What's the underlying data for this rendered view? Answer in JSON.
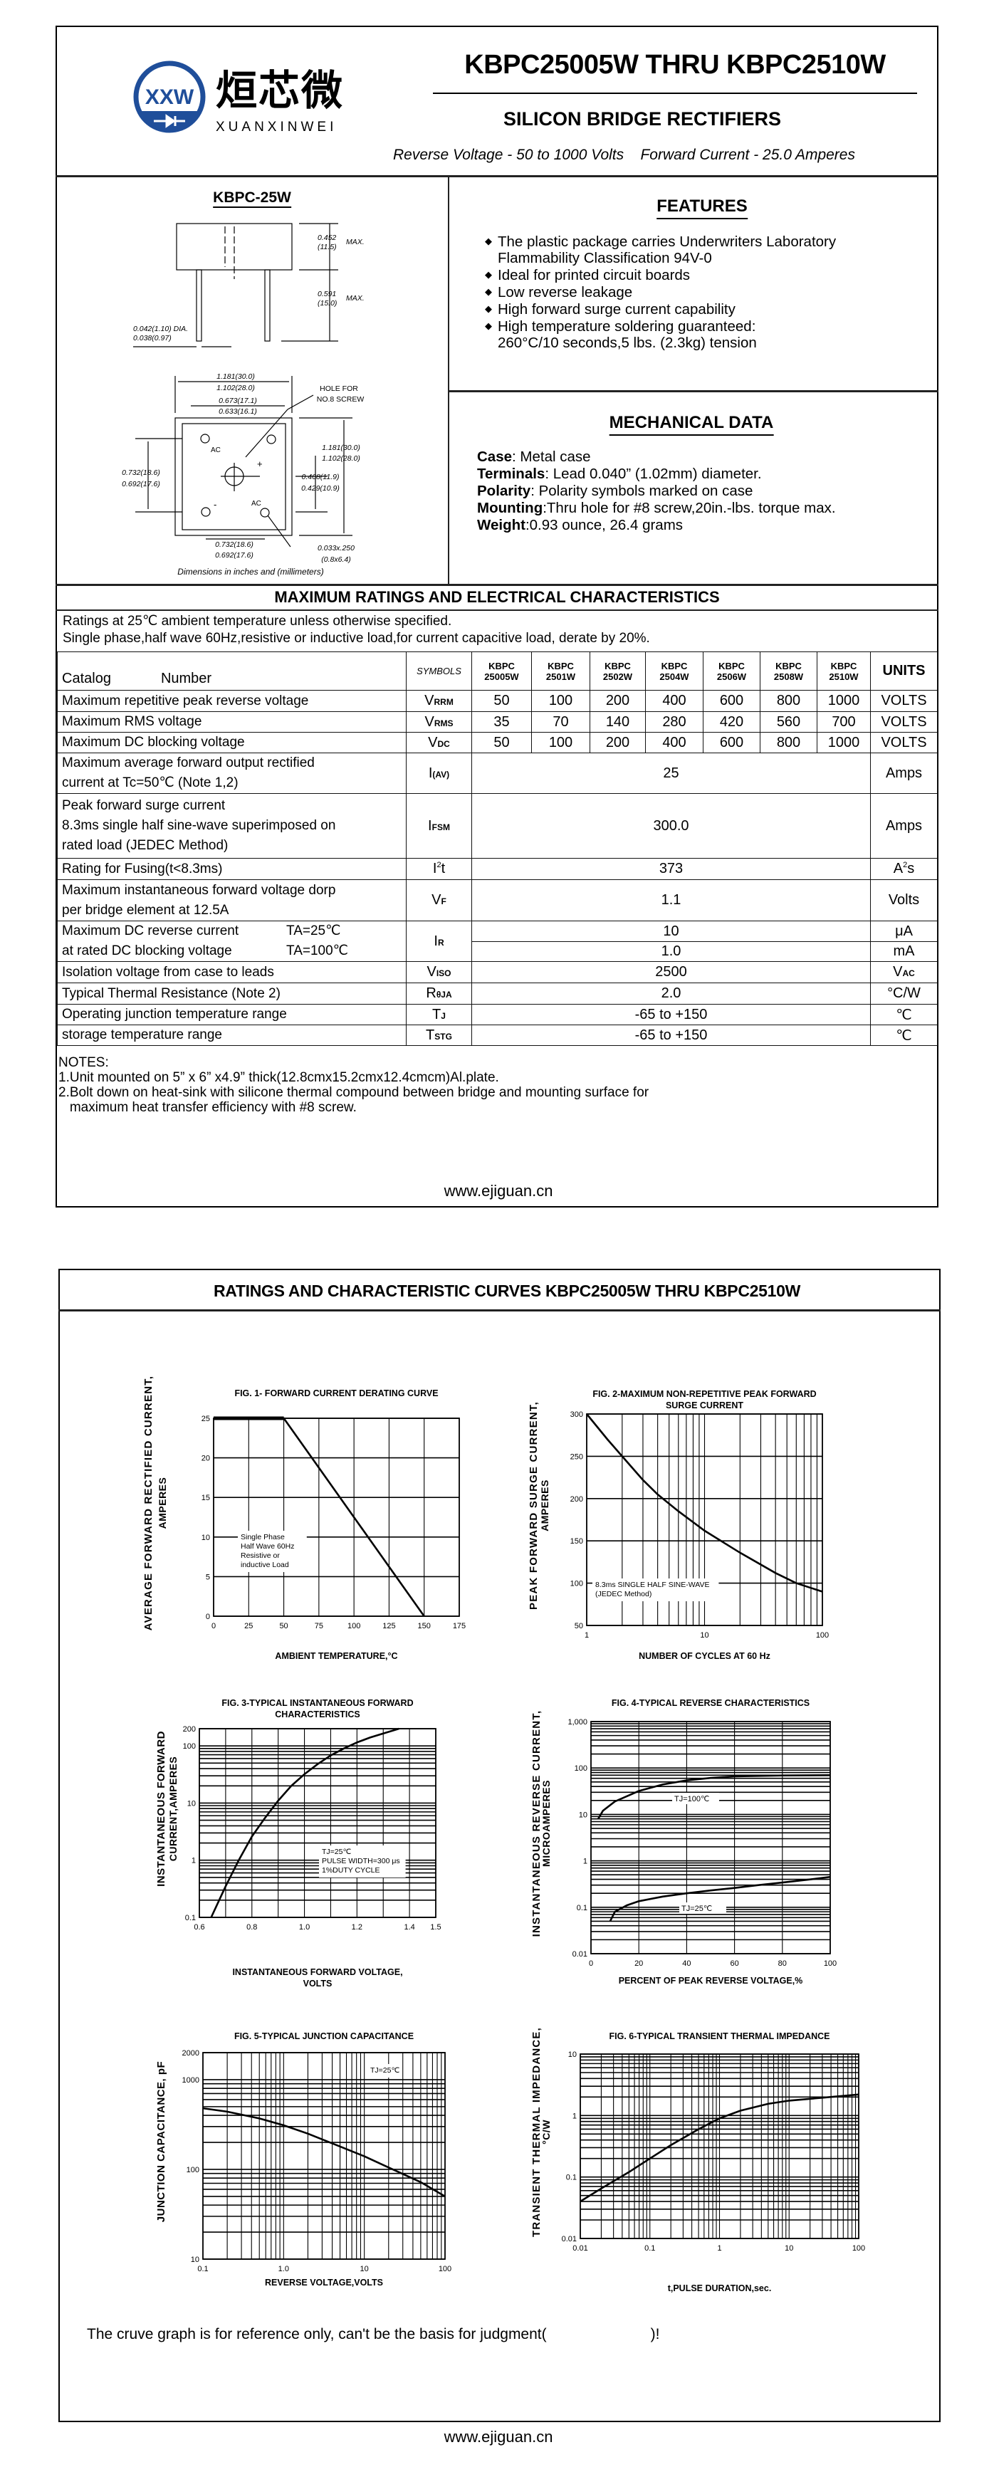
{
  "header": {
    "logo_cn": "烜芯微",
    "logo_en": "XUANXINWEI",
    "logo_mark": "XXW",
    "title": "KBPC25005W THRU KBPC2510W",
    "subtitle": "SILICON BRIDGE RECTIFIERS",
    "reverse_voltage": "Reverse Voltage - 50 to 1000 Volts",
    "forward_current": "Forward Current -  25.0 Amperes",
    "brand_color": "#1f4e9a",
    "accent_color": "#3cb54a"
  },
  "package": {
    "name": "KBPC-25W",
    "dims": {
      "body_height": [
        "0.452",
        "(11.5)",
        "MAX."
      ],
      "lead_length": [
        "0.591",
        "(15.0)",
        "MAX."
      ],
      "lead_dia": [
        "0.042(1.10) DIA.",
        "0.038(0.97)"
      ],
      "width_top": [
        "1.181(30.0)",
        "1.102(28.0)"
      ],
      "hole_spacing": [
        "0.673(17.1)",
        "0.633(16.1)"
      ],
      "hole_note": [
        "HOLE FOR",
        "NO.8 SCREW"
      ],
      "height_right": [
        "1.181(30.0)",
        "1.102(28.0)"
      ],
      "center_right": [
        "0.468(11.9)",
        "0.429(10.9)"
      ],
      "pin_left": [
        "0.732(18.6)",
        "0.692(17.6)"
      ],
      "pin_bottom": [
        "0.732(18.6)",
        "0.692(17.6)"
      ],
      "terminal": [
        "0.033x.250",
        "(0.8x6.4)"
      ],
      "pins": {
        "ac1": "AC",
        "ac2": "AC",
        "plus": "+",
        "minus": "-"
      }
    },
    "caption": "Dimensions in inches and (millimeters)"
  },
  "features": {
    "title": "FEATURES",
    "items": [
      {
        "lines": [
          "The plastic package carries Underwriters Laboratory",
          "Flammability Classification 94V-0"
        ]
      },
      {
        "lines": [
          "Ideal for printed circuit boards"
        ]
      },
      {
        "lines": [
          "Low reverse leakage"
        ]
      },
      {
        "lines": [
          "High forward surge current capability"
        ]
      },
      {
        "lines": [
          "High temperature soldering guaranteed:",
          "260°C/10 seconds,5 lbs. (2.3kg) tension"
        ]
      }
    ]
  },
  "mechanical": {
    "title": "MECHANICAL DATA",
    "items": [
      {
        "label": "Case",
        "text": ": Metal case"
      },
      {
        "label": "Terminals",
        "text": ": Lead 0.040”   (1.02mm) diameter."
      },
      {
        "label": "Polarity",
        "text": ": Polarity symbols marked on case"
      },
      {
        "label": "Mounting",
        "text": ":Thru hole for #8 screw,20in.-lbs. torque max."
      },
      {
        "label": "Weight",
        "text": ":0.93 ounce, 26.4 grams"
      }
    ]
  },
  "ratings": {
    "title": "MAXIMUM RATINGS AND ELECTRICAL CHARACTERISTICS",
    "conditions": [
      "Ratings at 25℃ ambient temperature unless otherwise specified.",
      "Single phase,half wave 60Hz,resistive or inductive load,for current capacitive load, derate by 20%."
    ],
    "header": {
      "catalog": "Catalog",
      "number": "Number",
      "symbols": "SYMBOLS",
      "parts": [
        [
          "KBPC",
          "25005W"
        ],
        [
          "KBPC",
          "2501W"
        ],
        [
          "KBPC",
          "2502W"
        ],
        [
          "KBPC",
          "2504W"
        ],
        [
          "KBPC",
          "2506W"
        ],
        [
          "KBPC",
          "2508W"
        ],
        [
          "KBPC",
          "2510W"
        ]
      ],
      "units": "UNITS"
    },
    "rows": [
      {
        "desc": [
          [
            "Maximum repetitive peak reverse voltage"
          ]
        ],
        "sym": "V",
        "sym_sub": "RRM",
        "values": [
          "50",
          "100",
          "200",
          "400",
          "600",
          "800",
          "1000"
        ],
        "unit": "VOLTS"
      },
      {
        "desc": [
          [
            "Maximum RMS voltage"
          ]
        ],
        "sym": "V",
        "sym_sub": "RMS",
        "values": [
          "35",
          "70",
          "140",
          "280",
          "420",
          "560",
          "700"
        ],
        "unit": "VOLTS"
      },
      {
        "desc": [
          [
            "Maximum DC blocking voltage"
          ]
        ],
        "sym": "V",
        "sym_sub": "DC",
        "values": [
          "50",
          "100",
          "200",
          "400",
          "600",
          "800",
          "1000"
        ],
        "unit": "VOLTS"
      },
      {
        "desc": [
          [
            "Maximum average forward output rectified"
          ],
          [
            "current at  Tc=50℃  (Note 1,2)"
          ]
        ],
        "sym": "I",
        "sym_sub": "(AV)",
        "value": "25",
        "unit": "Amps"
      },
      {
        "desc": [
          [
            "Peak forward surge current"
          ],
          [
            "8.3ms single half sine-wave superimposed on"
          ],
          [
            "rated load (JEDEC Method)"
          ]
        ],
        "sym": "I",
        "sym_sub": "FSM",
        "value": "300.0",
        "unit": "Amps"
      },
      {
        "desc": [
          [
            "Rating for Fusing(t<8.3ms)"
          ]
        ],
        "sym": "I",
        "sym_sup": "2",
        "sym_tail": "t",
        "value": "373",
        "unit": "A",
        "unit_sup": "2",
        "unit_tail": "s"
      },
      {
        "desc": [
          [
            "Maximum instantaneous forward voltage dorp"
          ],
          [
            "per bridge element at 12.5A"
          ]
        ],
        "sym": "V",
        "sym_sub": "F",
        "value": "1.1",
        "unit": "Volts"
      },
      {
        "desc": [
          [
            "Maximum DC reverse current",
            "TA=25℃"
          ],
          [
            "at rated DC blocking voltage",
            "TA=100℃"
          ]
        ],
        "sym": "I",
        "sym_sub": "R",
        "split": [
          {
            "value": "10",
            "unit": "μA"
          },
          {
            "value": "1.0",
            "unit": "mA"
          }
        ]
      },
      {
        "desc": [
          [
            "Isolation voltage from case to leads"
          ]
        ],
        "sym": "V",
        "sym_sub": "ISO",
        "value": "2500",
        "unit": "V",
        "unit_sub": "AC"
      },
      {
        "desc": [
          [
            "Typical Thermal Resistance (Note 2)"
          ]
        ],
        "sym": "R",
        "sym_sub": "θJA",
        "value": "2.0",
        "unit": "°C/W"
      },
      {
        "desc": [
          [
            "Operating junction temperature range"
          ]
        ],
        "sym": "T",
        "sym_sub": "J",
        "value": "-65 to +150",
        "unit": "℃"
      },
      {
        "desc": [
          [
            "storage temperature range"
          ]
        ],
        "sym": "T",
        "sym_sub": "STG",
        "value": "-65 to +150",
        "unit": "℃"
      }
    ]
  },
  "notes": {
    "title": "NOTES:",
    "lines": [
      "1.Unit mounted on 5”  x 6”   x4.9”   thick(12.8cmx15.2cmx12.4cmcm)Al.plate.",
      "2.Bolt down on heat-sink with silicone thermal compound between bridge and mounting surface for",
      "   maximum heat transfer efficiency with #8 screw."
    ]
  },
  "footer": {
    "url": "www.ejiguan.cn"
  },
  "page2": {
    "title": "RATINGS AND CHARACTERISTIC CURVES KBPC25005W THRU KBPC2510W",
    "disclaimer": "The cruve graph is for reference only, can't be the basis for judgment(",
    "disclaimer_end": ")!"
  },
  "chart_data": [
    {
      "id": "fig1",
      "type": "line",
      "title": [
        "FIG. 1- FORWARD CURRENT DERATING CURVE"
      ],
      "xlabel": [
        "AMBIENT TEMPERATURE,°C"
      ],
      "ylabel": [
        "AVERAGE FORWARD RECTIFIED CURRENT,",
        "AMPERES"
      ],
      "grid": true,
      "x_axis": {
        "scale": "linear",
        "min": 0,
        "max": 175,
        "grid_step": 25,
        "ticks": [
          0,
          25,
          50,
          75,
          100,
          125,
          150,
          175
        ],
        "tick_labels": [
          "0",
          "25",
          "50",
          "75",
          "100",
          "125",
          "150",
          "175"
        ]
      },
      "y_axis": {
        "scale": "linear",
        "min": 0,
        "max": 25,
        "grid_step": 5,
        "ticks": [
          0,
          5,
          10,
          15,
          20,
          25
        ],
        "tick_labels": [
          "0",
          "5",
          "10",
          "15",
          "20",
          "25"
        ]
      },
      "series": [
        {
          "points": [
            [
              0,
              25
            ],
            [
              50,
              25
            ],
            [
              150,
              0
            ]
          ]
        }
      ],
      "annotations": [
        {
          "lines": [
            "Single Phase",
            "Half Wave 60Hz",
            "Resistive or",
            "inductive Load"
          ]
        }
      ]
    },
    {
      "id": "fig2",
      "type": "line",
      "title": [
        "FIG. 2-MAXIMUM NON-REPETITIVE PEAK FORWARD",
        "SURGE CURRENT"
      ],
      "xlabel": [
        "NUMBER OF CYCLES AT 60 Hz"
      ],
      "ylabel": [
        "PEAK  FORWARD SURGE CURRENT,",
        "AMPERES"
      ],
      "grid": true,
      "x_axis": {
        "scale": "log",
        "min": 1,
        "max": 100,
        "ticks": [
          1,
          10,
          100
        ],
        "tick_labels": [
          "1",
          "10",
          "100"
        ]
      },
      "y_axis": {
        "scale": "linear",
        "min": 50,
        "max": 300,
        "grid_step": 50,
        "ticks": [
          50,
          100,
          150,
          200,
          250,
          300
        ],
        "tick_labels": [
          "50",
          "100",
          "150",
          "200",
          "250",
          "300"
        ]
      },
      "series": [
        {
          "points": [
            [
              1,
              300
            ],
            [
              1.5,
              270
            ],
            [
              2,
              250
            ],
            [
              3,
              222
            ],
            [
              4,
              205
            ],
            [
              6,
              185
            ],
            [
              10,
              162
            ],
            [
              20,
              136
            ],
            [
              40,
              112
            ],
            [
              60,
              100
            ],
            [
              100,
              90
            ]
          ]
        }
      ],
      "annotations": [
        {
          "lines": [
            "8.3ms SINGLE HALF SINE-WAVE",
            "(JEDEC Method)"
          ]
        }
      ]
    },
    {
      "id": "fig3",
      "type": "line",
      "title": [
        "FIG. 3-TYPICAL INSTANTANEOUS FORWARD",
        "CHARACTERISTICS"
      ],
      "xlabel": [
        "INSTANTANEOUS FORWARD VOLTAGE,",
        "VOLTS"
      ],
      "ylabel": [
        "INSTANTANEOUS FORWARD",
        "CURRENT,AMPERES"
      ],
      "grid": true,
      "x_axis": {
        "scale": "linear",
        "min": 0.6,
        "max": 1.5,
        "grid_step": 0.1,
        "ticks": [
          0.6,
          0.8,
          1.0,
          1.2,
          1.4,
          1.5
        ],
        "tick_labels": [
          "0.6",
          "0.8",
          "1.0",
          "1.2",
          "1.4",
          "1.5"
        ]
      },
      "y_axis": {
        "scale": "log",
        "min": 0.1,
        "max": 200,
        "ticks": [
          0.1,
          1,
          10,
          100,
          200
        ],
        "tick_labels": [
          "0.1",
          "1",
          "10",
          "100",
          "200"
        ]
      },
      "series": [
        {
          "points": [
            [
              0.645,
              0.1
            ],
            [
              0.7,
              0.35
            ],
            [
              0.75,
              1.0
            ],
            [
              0.8,
              2.6
            ],
            [
              0.85,
              5.5
            ],
            [
              0.9,
              11
            ],
            [
              0.95,
              20
            ],
            [
              1.0,
              32
            ],
            [
              1.05,
              48
            ],
            [
              1.1,
              68
            ],
            [
              1.15,
              90
            ],
            [
              1.2,
              115
            ],
            [
              1.25,
              140
            ],
            [
              1.3,
              165
            ],
            [
              1.36,
              200
            ]
          ]
        }
      ],
      "annotations": [
        {
          "lines": [
            "TJ=25℃",
            "PULSE WIDTH=300 μs",
            "1%DUTY CYCLE"
          ]
        }
      ]
    },
    {
      "id": "fig4",
      "type": "line",
      "title": [
        "FIG. 4-TYPICAL REVERSE CHARACTERISTICS"
      ],
      "xlabel": [
        "PERCENT OF PEAK REVERSE VOLTAGE,%"
      ],
      "ylabel": [
        "INSTANTANEOUS REVERSE CURRENT,",
        "MICROAMPERES"
      ],
      "grid": true,
      "x_axis": {
        "scale": "linear",
        "min": 0,
        "max": 100,
        "grid_step": 20,
        "ticks": [
          0,
          20,
          40,
          60,
          80,
          100
        ],
        "tick_labels": [
          "0",
          "20",
          "40",
          "60",
          "80",
          "100"
        ]
      },
      "y_axis": {
        "scale": "log",
        "min": 0.01,
        "max": 1000,
        "ticks": [
          0.01,
          0.1,
          1,
          10,
          100,
          1000
        ],
        "tick_labels": [
          "0.01",
          "0.1",
          "1",
          "10",
          "100",
          "1,000"
        ]
      },
      "series": [
        {
          "name": "TJ=100℃",
          "points": [
            [
              3,
              8
            ],
            [
              5,
              12
            ],
            [
              10,
              19
            ],
            [
              20,
              32
            ],
            [
              30,
              44
            ],
            [
              40,
              54
            ],
            [
              50,
              61
            ],
            [
              60,
              66
            ],
            [
              80,
              69
            ],
            [
              100,
              70
            ]
          ]
        },
        {
          "name": "TJ=25℃",
          "points": [
            [
              8,
              0.05
            ],
            [
              10,
              0.08
            ],
            [
              15,
              0.11
            ],
            [
              20,
              0.135
            ],
            [
              30,
              0.17
            ],
            [
              40,
              0.2
            ],
            [
              50,
              0.23
            ],
            [
              60,
              0.26
            ],
            [
              70,
              0.3
            ],
            [
              80,
              0.34
            ],
            [
              90,
              0.39
            ],
            [
              100,
              0.45
            ]
          ]
        }
      ]
    },
    {
      "id": "fig5",
      "type": "line",
      "title": [
        "FIG. 5-TYPICAL JUNCTION CAPACITANCE"
      ],
      "xlabel": [
        "REVERSE VOLTAGE,VOLTS"
      ],
      "ylabel": [
        "JUNCTION CAPACITANCE, pF"
      ],
      "grid": true,
      "x_axis": {
        "scale": "log",
        "min": 0.1,
        "max": 100,
        "ticks": [
          0.1,
          1,
          10,
          100
        ],
        "tick_labels": [
          "0.1",
          "1.0",
          "10",
          "100"
        ]
      },
      "y_axis": {
        "scale": "log",
        "min": 10,
        "max": 2000,
        "ticks": [
          10,
          100,
          1000,
          2000
        ],
        "tick_labels": [
          "10",
          "100",
          "1000",
          "2000"
        ]
      },
      "series": [
        {
          "points": [
            [
              0.1,
              480
            ],
            [
              0.2,
              440
            ],
            [
              0.5,
              370
            ],
            [
              1,
              310
            ],
            [
              2,
              250
            ],
            [
              5,
              180
            ],
            [
              10,
              140
            ],
            [
              20,
              105
            ],
            [
              50,
              72
            ],
            [
              100,
              50
            ]
          ]
        }
      ],
      "annotations": [
        {
          "lines": [
            "TJ=25℃"
          ]
        }
      ]
    },
    {
      "id": "fig6",
      "type": "line",
      "title": [
        "FIG. 6-TYPICAL TRANSIENT THERMAL IMPEDANCE"
      ],
      "xlabel": [
        "t,PULSE DURATION,sec."
      ],
      "ylabel": [
        "TRANSIENT THERMAL IMPEDANCE,",
        "°C/W"
      ],
      "grid": true,
      "x_axis": {
        "scale": "log",
        "min": 0.01,
        "max": 100,
        "ticks": [
          0.01,
          0.1,
          1,
          10,
          100
        ],
        "tick_labels": [
          "0.01",
          "0.1",
          "1",
          "10",
          "100"
        ]
      },
      "y_axis": {
        "scale": "log",
        "min": 0.01,
        "max": 10,
        "ticks": [
          0.01,
          0.1,
          1,
          10
        ],
        "tick_labels": [
          "0.01",
          "0.1",
          "1",
          "10"
        ]
      },
      "series": [
        {
          "points": [
            [
              0.01,
              0.04
            ],
            [
              0.02,
              0.065
            ],
            [
              0.05,
              0.12
            ],
            [
              0.1,
              0.2
            ],
            [
              0.2,
              0.33
            ],
            [
              0.5,
              0.6
            ],
            [
              1,
              0.9
            ],
            [
              2,
              1.2
            ],
            [
              5,
              1.55
            ],
            [
              10,
              1.75
            ],
            [
              30,
              1.95
            ],
            [
              100,
              2.2
            ]
          ]
        }
      ]
    }
  ]
}
